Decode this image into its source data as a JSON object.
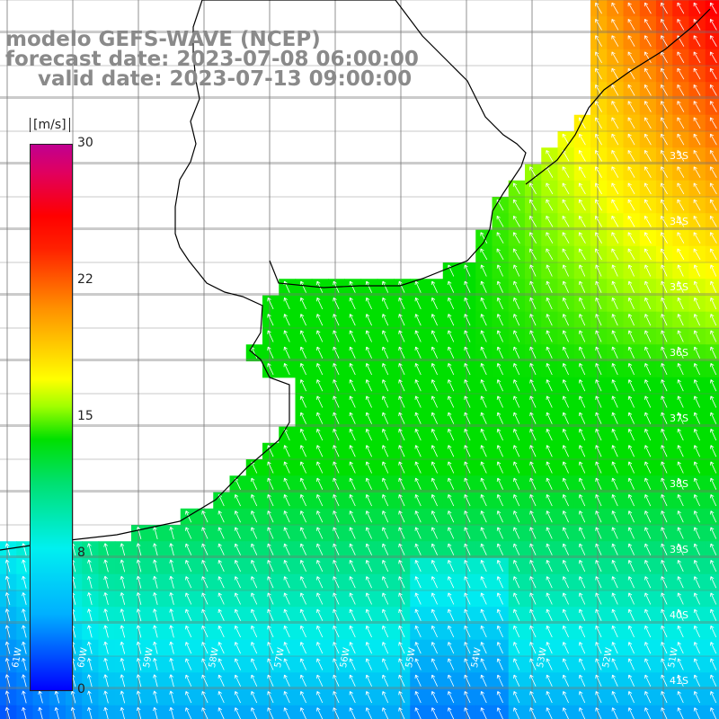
{
  "title": {
    "line1": "modelo GEFS-WAVE (NCEP)",
    "line2": "forecast date: 2023-07-08 06:00:00",
    "line3": "valid date: 2023-07-13 09:00:00"
  },
  "colorbar": {
    "unit": "[m/s]",
    "ticks": [
      "30",
      "22",
      "15",
      "8",
      "0"
    ],
    "colors": [
      "#0000ff",
      "#00b0ff",
      "#00f0f0",
      "#00e070",
      "#00e000",
      "#a0ff00",
      "#ffff00",
      "#ff9000",
      "#ff2000",
      "#ff0000",
      "#c00090"
    ]
  },
  "axes": {
    "lat_labels": [
      "33S",
      "34S",
      "35S",
      "36S",
      "37S",
      "38S",
      "39S",
      "40S",
      "41S"
    ],
    "lon_labels": [
      "61W",
      "60W",
      "59W",
      "58W",
      "57W",
      "56W",
      "55W",
      "54W",
      "53W",
      "52W",
      "51W"
    ]
  },
  "map_data": {
    "variable": "wind speed",
    "units": "m/s",
    "scale_min": 0,
    "scale_max": 30,
    "lon_range": [
      -62,
      -51
    ],
    "lat_range": [
      -41.3,
      -30.5
    ],
    "wind_direction": "from southeast",
    "regions": {
      "north_east_offshore": "orange-yellow, about 18-24 m/s",
      "central_shelf": "green, about 12-15 m/s",
      "southern_area": "cyan-blue, about 5-9 m/s"
    }
  }
}
